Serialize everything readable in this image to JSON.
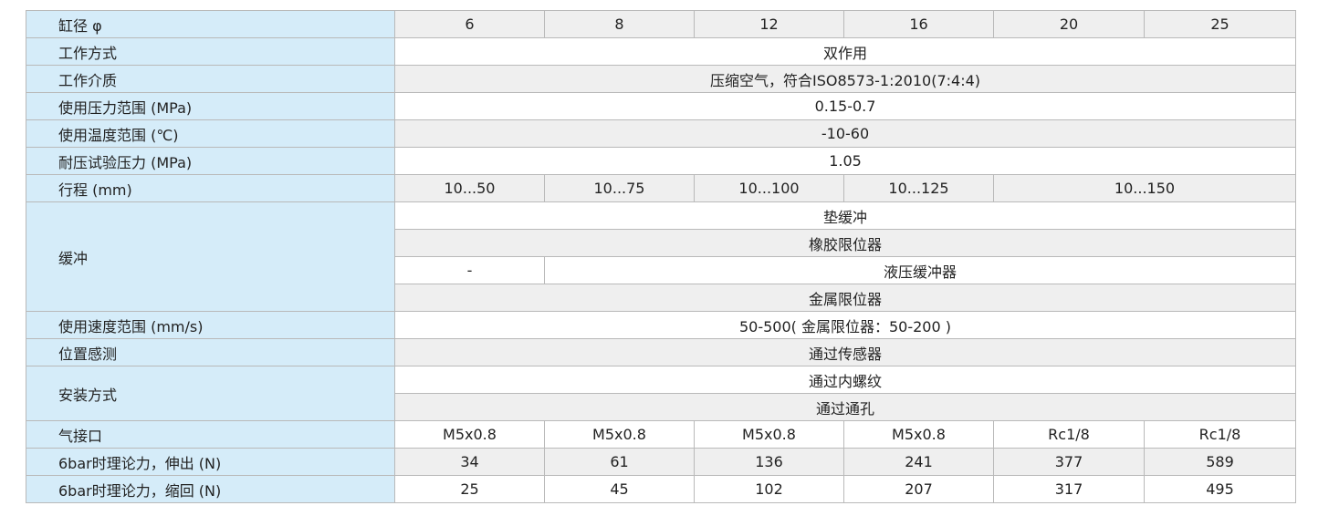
{
  "bore": {
    "label": "缸径 φ",
    "values": [
      "6",
      "8",
      "12",
      "16",
      "20",
      "25"
    ]
  },
  "mode": {
    "label": "工作方式",
    "value": "双作用"
  },
  "medium": {
    "label": "工作介质",
    "value": "压缩空气，符合ISO8573-1:2010(7:4:4)"
  },
  "pressure": {
    "label": "使用压力范围 (MPa)",
    "value": "0.15-0.7"
  },
  "temp": {
    "label": "使用温度范围 (℃)",
    "value": "-10-60"
  },
  "proof": {
    "label": "耐压试验压力 (MPa)",
    "value": "1.05"
  },
  "stroke": {
    "label": "行程 (mm)",
    "values": [
      "10...50",
      "10...75",
      "10...100",
      "10...125",
      "10...150"
    ]
  },
  "cushion": {
    "label": "缓冲",
    "opt1": "垫缓冲",
    "opt2": "橡胶限位器",
    "opt3_first": "-",
    "opt3": "液压缓冲器",
    "opt4": "金属限位器"
  },
  "speed": {
    "label": "使用速度范围 (mm/s)",
    "value": "50-500( 金属限位器：50-200 )"
  },
  "sensing": {
    "label": "位置感测",
    "value": "通过传感器"
  },
  "mounting": {
    "label": "安装方式",
    "opt1": "通过内螺纹",
    "opt2": "通过通孔"
  },
  "port": {
    "label": "气接口",
    "values": [
      "M5x0.8",
      "M5x0.8",
      "M5x0.8",
      "M5x0.8",
      "Rc1/8",
      "Rc1/8"
    ]
  },
  "force_out": {
    "label": "6bar时理论力，伸出 (N)",
    "values": [
      "34",
      "61",
      "136",
      "241",
      "377",
      "589"
    ]
  },
  "force_in": {
    "label": "6bar时理论力，缩回 (N)",
    "values": [
      "25",
      "45",
      "102",
      "207",
      "317",
      "495"
    ]
  }
}
